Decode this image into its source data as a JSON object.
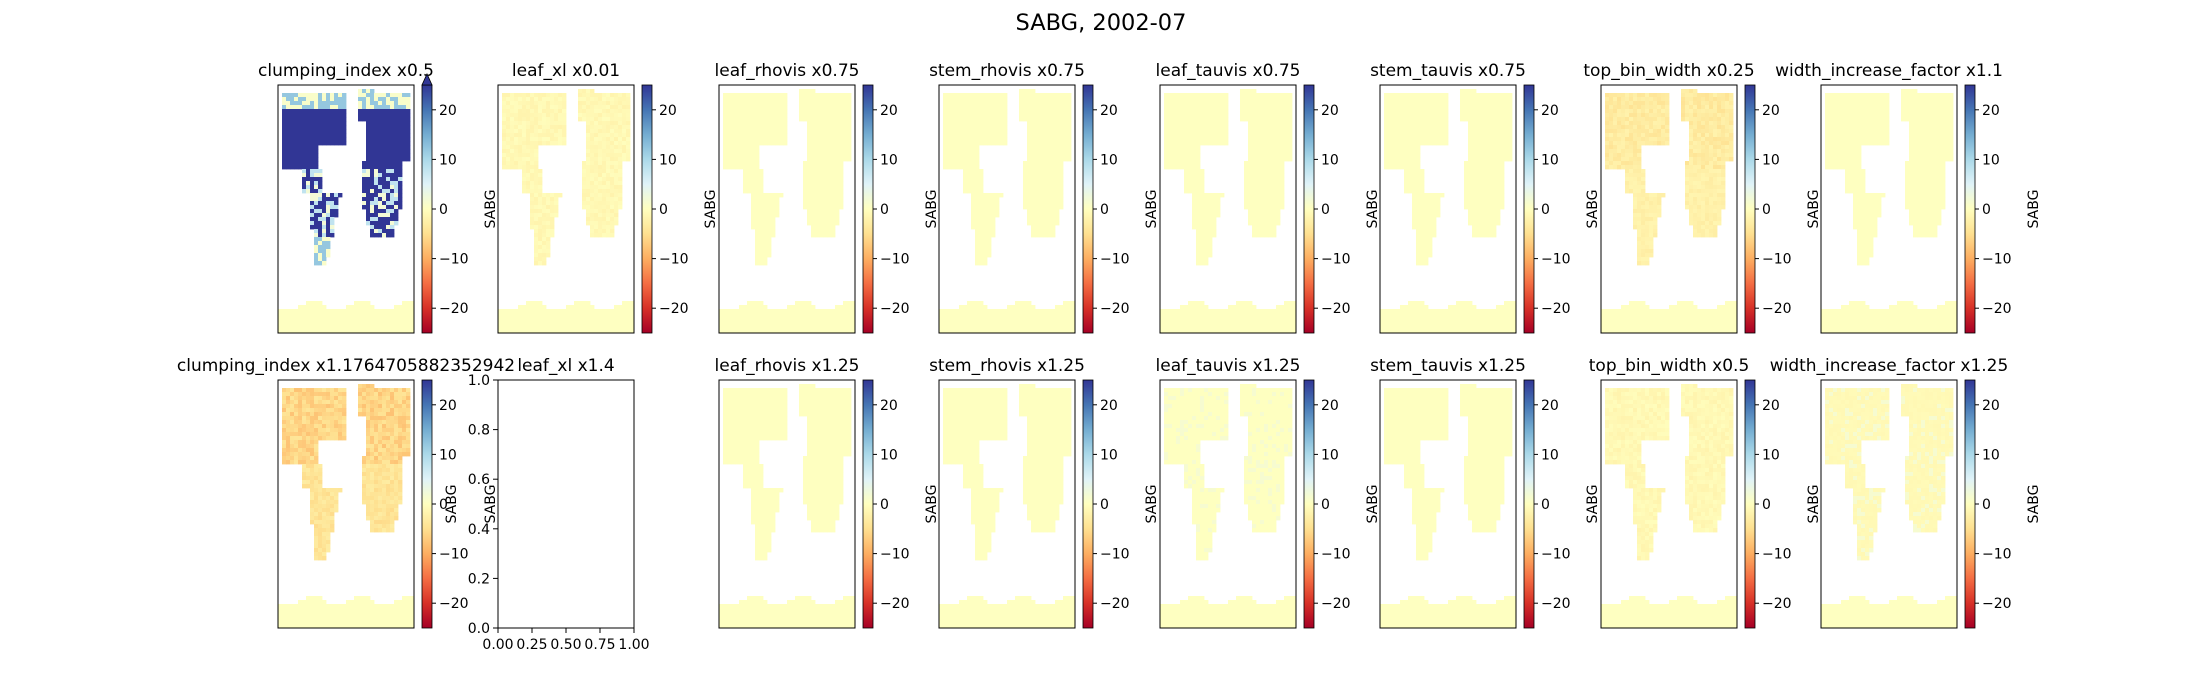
{
  "title": "SABG, 2002-07",
  "colorbar": {
    "label": "SABG",
    "ticks": [
      "20",
      "10",
      "0",
      "−10",
      "−20"
    ],
    "vmin": -25,
    "vmax": 25,
    "cmap": "RdYlBu"
  },
  "empty_axes": {
    "yticks": [
      "1.0",
      "0.8",
      "0.6",
      "0.4",
      "0.2",
      "0.0"
    ],
    "xticks": [
      "0.00",
      "0.25",
      "0.50",
      "0.75",
      "1.00"
    ],
    "ylabel": "SABG"
  },
  "chart_data": {
    "type": "heatmap",
    "panels": [
      {
        "title": "clumping_index x0.5",
        "pattern": "strong_positive",
        "colorbar_extend": "max"
      },
      {
        "title": "leaf_xl x0.01",
        "pattern": "slight_negative"
      },
      {
        "title": "leaf_rhovis x0.75",
        "pattern": "near_zero"
      },
      {
        "title": "stem_rhovis x0.75",
        "pattern": "near_zero"
      },
      {
        "title": "leaf_tauvis x0.75",
        "pattern": "near_zero"
      },
      {
        "title": "stem_tauvis x0.75",
        "pattern": "near_zero"
      },
      {
        "title": "top_bin_width x0.25",
        "pattern": "negative"
      },
      {
        "title": "width_increase_factor x1.1",
        "pattern": "near_zero"
      },
      {
        "title": "clumping_index x1.1764705882352942",
        "pattern": "moderate_negative"
      },
      {
        "title": "leaf_xl x1.4",
        "pattern": "empty"
      },
      {
        "title": "leaf_rhovis x1.25",
        "pattern": "near_zero"
      },
      {
        "title": "stem_rhovis x1.25",
        "pattern": "near_zero"
      },
      {
        "title": "leaf_tauvis x1.25",
        "pattern": "near_zero_mixed"
      },
      {
        "title": "stem_tauvis x1.25",
        "pattern": "near_zero"
      },
      {
        "title": "top_bin_width x0.5",
        "pattern": "slight_negative"
      },
      {
        "title": "width_increase_factor x1.25",
        "pattern": "slight_mixed"
      }
    ]
  }
}
